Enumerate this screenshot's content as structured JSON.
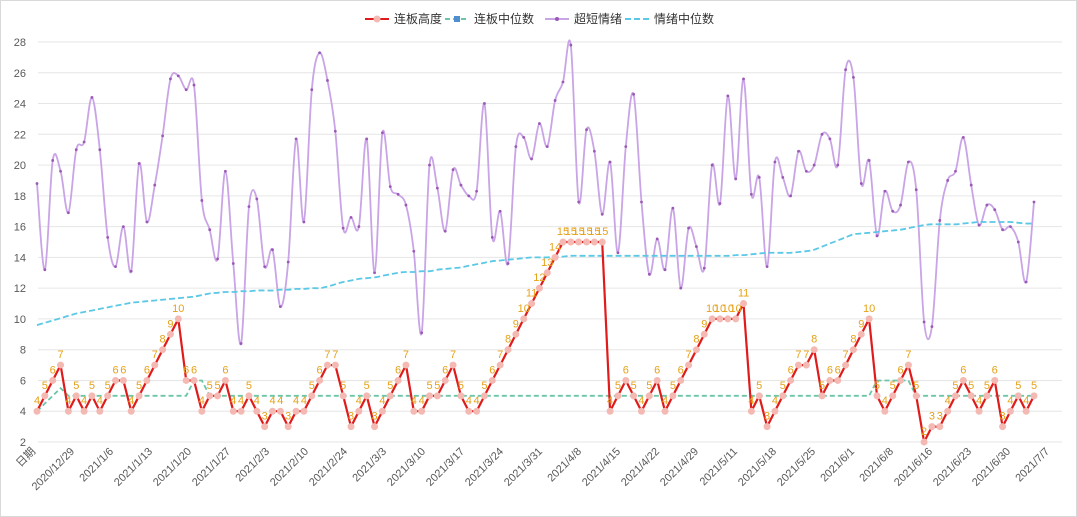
{
  "chart_data": {
    "type": "line",
    "x_axis_title": "日期",
    "x_ticks": [
      "2020/12/29",
      "2021/1/6",
      "2021/1/13",
      "2021/1/20",
      "2021/1/27",
      "2021/2/3",
      "2021/2/10",
      "2021/2/24",
      "2021/3/3",
      "2021/3/10",
      "2021/3/17",
      "2021/3/24",
      "2021/3/31",
      "2021/4/8",
      "2021/4/15",
      "2021/4/22",
      "2021/4/29",
      "2021/5/11",
      "2021/5/18",
      "2021/5/25",
      "2021/6/1",
      "2021/6/8",
      "2021/6/16",
      "2021/6/23",
      "2021/6/30",
      "2021/7/7"
    ],
    "y_ticks": [
      2,
      4,
      6,
      8,
      10,
      12,
      14,
      16,
      18,
      20,
      22,
      24,
      26,
      28
    ],
    "ylim": [
      2,
      28
    ],
    "grid": "horizontal",
    "legend_position": "top",
    "series": [
      {
        "name": "连板高度",
        "color": "#e01b1b",
        "marker_color": "#f4b9b2",
        "values": [
          4,
          5,
          6,
          7,
          4,
          5,
          4,
          5,
          4,
          5,
          6,
          6,
          4,
          5,
          6,
          7,
          8,
          9,
          10,
          6,
          6,
          4,
          5,
          5,
          6,
          4,
          4,
          5,
          4,
          3,
          4,
          4,
          3,
          4,
          4,
          5,
          6,
          7,
          7,
          5,
          3,
          4,
          5,
          3,
          4,
          5,
          6,
          7,
          4,
          4,
          5,
          5,
          6,
          7,
          5,
          4,
          4,
          5,
          6,
          7,
          8,
          9,
          10,
          11,
          12,
          13,
          14,
          15,
          15,
          15,
          15,
          15,
          15,
          4,
          5,
          6,
          5,
          4,
          5,
          6,
          4,
          5,
          6,
          7,
          8,
          9,
          10,
          10,
          10,
          10,
          11,
          4,
          5,
          3,
          4,
          5,
          6,
          7,
          7,
          8,
          5,
          6,
          6,
          7,
          8,
          9,
          10,
          5,
          4,
          5,
          6,
          7,
          5,
          2,
          3,
          3,
          4,
          5,
          6,
          5,
          4,
          5,
          6,
          3,
          4,
          5,
          4,
          5
        ]
      },
      {
        "name": "连板中位数",
        "color": "#6cc5a7",
        "marker_color": "#4e8fcf",
        "values": [
          4,
          4.5,
          5,
          5.5,
          5,
          5,
          5,
          5,
          5,
          5,
          5,
          5,
          5,
          5,
          5,
          5,
          5,
          5,
          5,
          5,
          6,
          6,
          5,
          5,
          5,
          5,
          5,
          5,
          5,
          5,
          5,
          5,
          5,
          5,
          5,
          5,
          5,
          5,
          5,
          5,
          5,
          5,
          5,
          5,
          5,
          5,
          5,
          5,
          5,
          5,
          5,
          5,
          5,
          5,
          5,
          5,
          5,
          5,
          5,
          5,
          5,
          5,
          5,
          5,
          5,
          5,
          5,
          5,
          5,
          5,
          5,
          5,
          5,
          5,
          5,
          5,
          5,
          5,
          5,
          5,
          5,
          5,
          5,
          5,
          5,
          5,
          5,
          5,
          5,
          5,
          5,
          5,
          5,
          5,
          5,
          5,
          5,
          5,
          5,
          5,
          5,
          5,
          5,
          5,
          5,
          5,
          5,
          6,
          6,
          6,
          6,
          6,
          5,
          5,
          5,
          5,
          5,
          5,
          5,
          5,
          5,
          5,
          5,
          5,
          5,
          5,
          5,
          5
        ]
      },
      {
        "name": "超短情绪",
        "color": "#c9a4e6",
        "marker_color": "#9b59b6",
        "values": [
          18.8,
          13.2,
          20.3,
          19.6,
          16.9,
          21,
          21.5,
          24.4,
          21,
          15.3,
          13.4,
          16,
          13.1,
          20.1,
          16.3,
          18.7,
          21.9,
          25.6,
          25.8,
          24.9,
          25.2,
          17.7,
          15.8,
          13.9,
          19.6,
          13.6,
          8.4,
          17.3,
          17.8,
          13.4,
          14.5,
          10.8,
          13.7,
          21.7,
          16.3,
          24.9,
          27.3,
          25.5,
          22.2,
          15.9,
          16.6,
          16,
          21.7,
          13,
          22.1,
          18.6,
          18.1,
          17.4,
          14.4,
          9.1,
          20,
          18.5,
          15.7,
          19.7,
          18.7,
          18,
          18.3,
          24,
          15.3,
          17,
          13.6,
          21.2,
          21.8,
          20.4,
          22.7,
          21.2,
          24.2,
          25.4,
          27.8,
          17.6,
          22.3,
          20.9,
          16.8,
          20.2,
          14.3,
          21.2,
          24.6,
          17.6,
          12.9,
          15.2,
          13.2,
          17.2,
          12,
          15.9,
          14.7,
          13.3,
          20,
          17.5,
          24.5,
          19.1,
          25.6,
          18.1,
          19.2,
          13.4,
          20.2,
          19.2,
          18,
          20.9,
          19.6,
          20,
          22,
          21.7,
          20,
          26.2,
          25.7,
          18.8,
          20.3,
          15.4,
          18.3,
          17,
          17.4,
          20.2,
          18.4,
          9.8,
          9.5,
          16.4,
          19,
          19.6,
          21.8,
          18.7,
          16.1,
          17.4,
          17.1,
          15.8,
          16,
          15,
          12.4,
          17.6
        ]
      },
      {
        "name": "情绪中位数",
        "color": "#5bc8e6",
        "marker_color": "#5bc8e6",
        "values": [
          9.6,
          9.75,
          9.9,
          10.05,
          10.2,
          10.35,
          10.45,
          10.55,
          10.65,
          10.75,
          10.85,
          10.95,
          11.05,
          11.1,
          11.15,
          11.2,
          11.25,
          11.3,
          11.35,
          11.4,
          11.45,
          11.55,
          11.65,
          11.7,
          11.75,
          11.75,
          11.8,
          11.8,
          11.85,
          11.85,
          11.85,
          11.9,
          11.9,
          11.95,
          11.95,
          12,
          12,
          12.1,
          12.25,
          12.4,
          12.5,
          12.6,
          12.65,
          12.7,
          12.8,
          12.9,
          13,
          13.05,
          13.05,
          13.1,
          13.1,
          13.2,
          13.25,
          13.3,
          13.35,
          13.45,
          13.55,
          13.65,
          13.75,
          13.8,
          13.85,
          13.9,
          13.95,
          14,
          14,
          14,
          14.05,
          14.05,
          14.1,
          14.1,
          14.1,
          14.1,
          14.1,
          14.1,
          14.1,
          14.1,
          14.1,
          14.1,
          14.1,
          14.1,
          14.1,
          14.1,
          14.1,
          14.1,
          14.1,
          14.1,
          14.1,
          14.1,
          14.1,
          14.15,
          14.15,
          14.2,
          14.25,
          14.3,
          14.3,
          14.3,
          14.3,
          14.35,
          14.4,
          14.5,
          14.7,
          14.9,
          15.1,
          15.3,
          15.5,
          15.55,
          15.6,
          15.65,
          15.7,
          15.75,
          15.8,
          15.9,
          16,
          16.1,
          16.15,
          16.15,
          16.15,
          16.15,
          16.2,
          16.25,
          16.3,
          16.3,
          16.3,
          16.3,
          16.3,
          16.25,
          16.2,
          16.2
        ]
      }
    ],
    "data_labels": [
      4,
      5,
      6,
      7,
      4,
      5,
      4,
      5,
      4,
      5,
      6,
      6,
      4,
      5,
      6,
      7,
      8,
      9,
      10,
      6,
      6,
      4,
      5,
      5,
      6,
      4,
      4,
      5,
      4,
      3,
      4,
      4,
      3,
      4,
      4,
      5,
      6,
      7,
      7,
      5,
      3,
      4,
      5,
      3,
      4,
      5,
      6,
      7,
      4,
      4,
      5,
      5,
      6,
      7,
      5,
      4,
      4,
      5,
      6,
      7,
      8,
      9,
      10,
      11,
      12,
      13,
      14,
      15,
      15,
      15,
      15,
      15,
      15,
      4,
      5,
      6,
      5,
      4,
      5,
      6,
      4,
      5,
      6,
      7,
      8,
      9,
      10,
      10,
      10,
      10,
      11,
      4,
      5,
      3,
      4,
      5,
      6,
      7,
      7,
      8,
      5,
      6,
      6,
      7,
      8,
      9,
      10,
      5,
      4,
      5,
      6,
      7,
      5,
      2,
      3,
      3,
      4,
      5,
      6,
      5,
      4,
      5,
      6,
      3,
      4,
      5,
      4,
      5
    ]
  }
}
